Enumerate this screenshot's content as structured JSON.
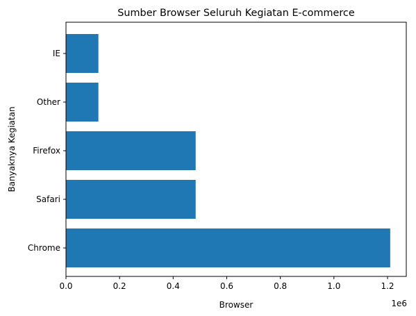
{
  "chart_data": {
    "type": "bar",
    "orientation": "horizontal",
    "title": "Sumber Browser Seluruh Kegiatan E-commerce",
    "xlabel": "Browser",
    "ylabel": "Banyaknya Kegiatan",
    "categories": [
      "Chrome",
      "Safari",
      "Firefox",
      "Other",
      "IE"
    ],
    "values": [
      1210000,
      484000,
      484000,
      121000,
      121000
    ],
    "xlim": [
      0,
      1270000
    ],
    "xticks": [
      0,
      200000,
      400000,
      600000,
      800000,
      1000000,
      1200000
    ],
    "xtick_labels": [
      "0.0",
      "0.2",
      "0.4",
      "0.6",
      "0.8",
      "1.0",
      "1.2"
    ],
    "x_offset_label": "1e6",
    "grid": false,
    "bar_color": "#1f77b4"
  }
}
